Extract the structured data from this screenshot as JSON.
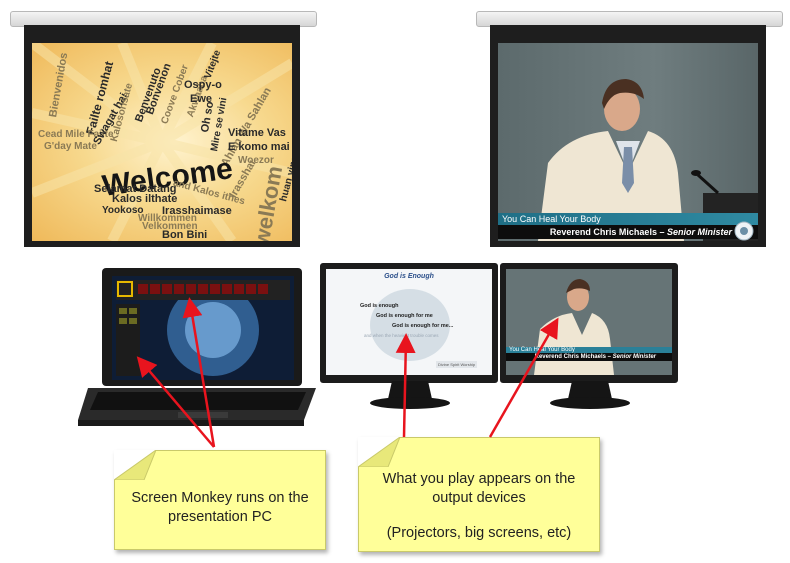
{
  "welcome_words": [
    "Welcome",
    "welkom",
    "Bienvenidos",
    "Failte romhat",
    "Cead Mile Failte",
    "G'day Mate",
    "Swagat hai",
    "Kalosorisate",
    "Bonvenon",
    "Benvenuto",
    "Coove Cober",
    "Akwaaba",
    "Vitejte",
    "Ospy-o",
    "Ewe",
    "Oh so",
    "Mire se vini",
    "Ahlan Wa Sahlan",
    "Vitame Vas",
    "E komo mai",
    "Woezor",
    "Irasshai",
    "huan ying",
    "Selamat Datang",
    "Kalos ilthate",
    "and Kalos ithes",
    "Irasshaimase",
    "Yookoso",
    "Willkommen",
    "Velkommen",
    "Bon Bini"
  ],
  "sermon": {
    "title": "You Can Heal Your Body",
    "speaker": "Reverend Chris Michaels –",
    "role": "Senior Minister"
  },
  "monitor_slide": {
    "title": "God is Enough",
    "lines": [
      "God is enough",
      "God is enough for me",
      "God is enough for me...",
      "and when the heaviest trouble comes"
    ],
    "footer": "Divine Spirit Worship"
  },
  "monitor_video": {
    "title": "You Can Heal Your Body",
    "speaker": "Reverend Chris Michaels –",
    "role": "Senior Minister"
  },
  "callouts": {
    "left": "Screen Monkey runs on the presentation PC",
    "right_line1": "What you play appears on the output devices",
    "right_line2": "(Projectors, big screens, etc)"
  },
  "colors": {
    "callout_fill": "#ffff99",
    "arrow": "#e8141e",
    "lower_third": "#2a8098"
  },
  "icons": [
    "projector-screen",
    "laptop",
    "monitor",
    "arrow"
  ]
}
